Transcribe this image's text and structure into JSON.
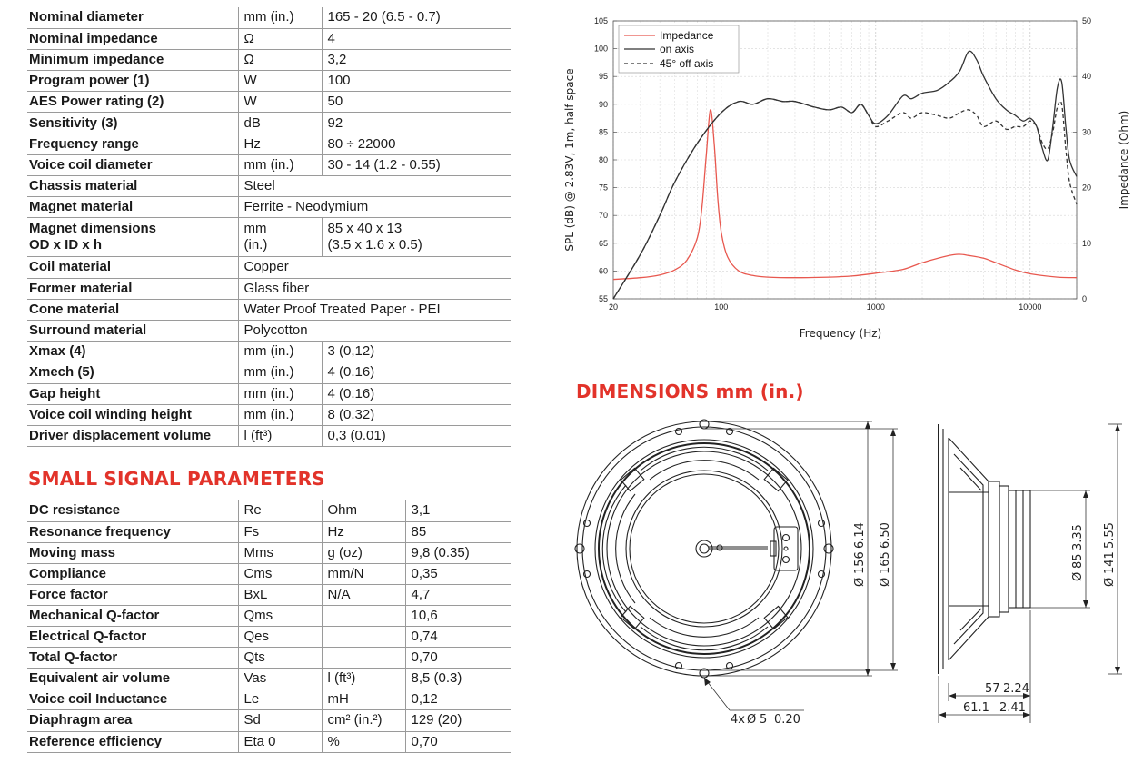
{
  "specs": [
    {
      "label": "Nominal diameter",
      "unit": "mm (in.)",
      "value": "165 - 20 (6.5 - 0.7)"
    },
    {
      "label": "Nominal impedance",
      "unit": "Ω",
      "value": "4"
    },
    {
      "label": "Minimum impedance",
      "unit": "Ω",
      "value": "3,2"
    },
    {
      "label": "Program power (1)",
      "unit": "W",
      "value": "100"
    },
    {
      "label": "AES Power rating (2)",
      "unit": "W",
      "value": "50"
    },
    {
      "label": "Sensitivity (3)",
      "unit": "dB",
      "value": "92"
    },
    {
      "label": "Frequency range",
      "unit": "Hz",
      "value": "80 ÷ 22000"
    },
    {
      "label": "Voice coil diameter",
      "unit": "mm (in.)",
      "value": "30 - 14 (1.2 - 0.55)"
    },
    {
      "label": "Chassis material",
      "unit": "Steel",
      "value": ""
    },
    {
      "label": "Magnet material",
      "unit": "Ferrite - Neodymium",
      "value": ""
    },
    {
      "label": "Magnet dimensions",
      "label2": "OD x ID x h",
      "unit": "mm",
      "unit2": "(in.)",
      "value": "85 x 40 x 13",
      "value2": "(3.5 x 1.6 x 0.5)"
    },
    {
      "label": "Coil material",
      "unit": "Copper",
      "value": ""
    },
    {
      "label": "Former material",
      "unit": "Glass fiber",
      "value": ""
    },
    {
      "label": "Cone material",
      "unit": "Water Proof Treated Paper - PEI",
      "value": ""
    },
    {
      "label": "Surround material",
      "unit": "Polycotton",
      "value": ""
    },
    {
      "label": "Xmax (4)",
      "unit": "mm (in.)",
      "value": "3 (0,12)"
    },
    {
      "label": "Xmech (5)",
      "unit": "mm (in.)",
      "value": "4 (0.16)"
    },
    {
      "label": "Gap height",
      "unit": "mm (in.)",
      "value": "4 (0.16)"
    },
    {
      "label": "Voice coil winding height",
      "unit": "mm (in.)",
      "value": "8 (0.32)"
    },
    {
      "label": "Driver displacement volume",
      "unit": "l (ft³)",
      "value": "0,3 (0.01)"
    }
  ],
  "small_signal_title": "SMALL SIGNAL PARAMETERS",
  "small_signal": [
    {
      "label": "DC resistance",
      "symbol": "Re",
      "unit": "Ohm",
      "value": "3,1"
    },
    {
      "label": "Resonance frequency",
      "symbol": "Fs",
      "unit": "Hz",
      "value": "85"
    },
    {
      "label": "Moving mass",
      "symbol": "Mms",
      "unit": "g (oz)",
      "value": "9,8 (0.35)"
    },
    {
      "label": "Compliance",
      "symbol": "Cms",
      "unit": "mm/N",
      "value": "0,35"
    },
    {
      "label": "Force factor",
      "symbol": "BxL",
      "unit": "N/A",
      "value": "4,7"
    },
    {
      "label": "Mechanical Q-factor",
      "symbol": "Qms",
      "unit": "",
      "value": "10,6"
    },
    {
      "label": "Electrical Q-factor",
      "symbol": "Qes",
      "unit": "",
      "value": "0,74"
    },
    {
      "label": "Total Q-factor",
      "symbol": "Qts",
      "unit": "",
      "value": "0,70"
    },
    {
      "label": "Equivalent air volume",
      "symbol": "Vas",
      "unit": "l (ft³)",
      "value": "8,5 (0.3)"
    },
    {
      "label": "Voice coil Inductance",
      "symbol": "Le",
      "unit": "mH",
      "value": "0,12"
    },
    {
      "label": "Diaphragm area",
      "symbol": "Sd",
      "unit": "cm² (in.²)",
      "value": "129 (20)"
    },
    {
      "label": "Reference efficiency",
      "symbol": "Eta 0",
      "unit": "%",
      "value": "0,70"
    }
  ],
  "dimensions": {
    "title": "DIMENSIONS mm (in.)",
    "d156": "156",
    "d156_in": "6.14",
    "d165": "165",
    "d165_in": "6.50",
    "d85": "85",
    "d85_in": "3.35",
    "d141": "141",
    "d141_in": "5.55",
    "depth57": "57",
    "depth57_in": "2.24",
    "depth61": "61.1",
    "depth61_in": "2.41",
    "holes": "4x",
    "hole_d": "5",
    "hole_in": "0.20"
  },
  "chart_data": {
    "type": "line",
    "xlabel": "Frequency (Hz)",
    "ylabel": "SPL (dB) @ 2.83V, 1m, half space",
    "y2label": "Impedance (Ohm)",
    "xscale": "log",
    "xlim": [
      20,
      20000
    ],
    "ylim": [
      55,
      105
    ],
    "y2lim": [
      0,
      50
    ],
    "xticks": [
      "20",
      "100",
      "1000",
      "10000"
    ],
    "yticks": [
      "55",
      "60",
      "65",
      "70",
      "75",
      "80",
      "85",
      "90",
      "95",
      "100",
      "105"
    ],
    "y2ticks": [
      "0",
      "10",
      "20",
      "30",
      "40",
      "50"
    ],
    "grid": true,
    "legend_position": "top-left",
    "series": [
      {
        "name": "Impedance",
        "axis": "right",
        "color": "#e8584f",
        "dash": "solid",
        "x": [
          20,
          30,
          40,
          50,
          60,
          70,
          75,
          80,
          85,
          90,
          95,
          100,
          110,
          130,
          160,
          200,
          300,
          500,
          700,
          1000,
          1500,
          2000,
          3000,
          3500,
          4000,
          5000,
          6000,
          8000,
          10000,
          15000,
          20000
        ],
        "y": [
          3.5,
          3.8,
          4.3,
          5.2,
          7.0,
          11.0,
          16.5,
          26.0,
          34.0,
          28.0,
          18.0,
          12.0,
          7.5,
          5.0,
          4.2,
          3.9,
          3.8,
          3.9,
          4.1,
          4.6,
          5.3,
          6.5,
          7.8,
          8.0,
          7.8,
          7.3,
          6.5,
          5.2,
          4.5,
          3.9,
          3.8
        ]
      },
      {
        "name": "on axis",
        "axis": "left",
        "color": "#333333",
        "dash": "solid",
        "x": [
          20,
          30,
          40,
          50,
          70,
          100,
          130,
          160,
          200,
          250,
          300,
          400,
          500,
          600,
          700,
          800,
          900,
          1000,
          1200,
          1500,
          1700,
          2000,
          2500,
          3000,
          3500,
          4000,
          4500,
          5000,
          6000,
          7000,
          8000,
          9000,
          10000,
          11000,
          12000,
          13000,
          14000,
          15000,
          16000,
          17000,
          18000,
          20000
        ],
        "y": [
          55,
          63,
          70,
          76,
          83,
          88.5,
          90.5,
          90,
          91,
          90.5,
          90.5,
          89.5,
          89,
          89.5,
          88.5,
          90,
          88,
          86.5,
          88,
          91.5,
          91,
          92,
          92.5,
          94,
          96,
          99.5,
          98,
          95,
          91,
          89,
          88,
          87,
          87.5,
          86,
          82,
          80,
          86,
          93,
          94,
          86,
          80,
          77
        ]
      },
      {
        "name": "45° off axis",
        "axis": "left",
        "color": "#333333",
        "dash": "dashed",
        "x": [
          20,
          30,
          40,
          50,
          70,
          100,
          130,
          160,
          200,
          250,
          300,
          400,
          500,
          600,
          700,
          800,
          900,
          1000,
          1200,
          1500,
          1700,
          2000,
          2500,
          3000,
          3500,
          4000,
          4500,
          5000,
          6000,
          7000,
          8000,
          9000,
          10000,
          11000,
          12000,
          13000,
          14000,
          15000,
          16000,
          17000,
          18000,
          20000
        ],
        "y": [
          55,
          63,
          70,
          76,
          83,
          88.5,
          90.5,
          90,
          91,
          90.5,
          90.5,
          89.5,
          89,
          89.5,
          88.5,
          90,
          88,
          86,
          87,
          88.5,
          87.5,
          88.5,
          88,
          87.5,
          88.5,
          89,
          88,
          86,
          87,
          85.5,
          86,
          86,
          87,
          86,
          83,
          82,
          85,
          89.5,
          90,
          82,
          76,
          72
        ]
      }
    ]
  }
}
